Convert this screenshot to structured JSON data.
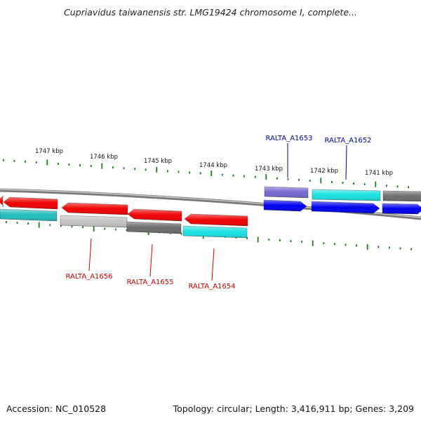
{
  "title": "Cupriavidus taiwanensis str. LMG19424 chromosome I, complete...",
  "footer": {
    "accession": "Accession: NC_010528",
    "topology": "Topology: circular; Length: 3,416,911 bp; Genes: 3,209"
  },
  "colors": {
    "tick": "#1f7a1f",
    "tick_label": "#111111",
    "backbone": "#7a7a7a",
    "label_red": "#cc0000",
    "label_blue": "#0000aa"
  },
  "ticks": [
    "1747 kbp",
    "1746 kbp",
    "1745 kbp",
    "1744 kbp",
    "1743 kbp",
    "1742 kbp",
    "1741 kbp"
  ],
  "gene_labels": [
    {
      "name": "RALTA_A1653",
      "color": "blue"
    },
    {
      "name": "RALTA_A1652",
      "color": "blue"
    },
    {
      "name": "RALTA_A1656",
      "color": "red"
    },
    {
      "name": "RALTA_A1655",
      "color": "red"
    },
    {
      "name": "RALTA_A1654",
      "color": "red"
    }
  ],
  "features": [
    {
      "name": "red-left-stub",
      "color": "#ee0000",
      "strand": "minus"
    },
    {
      "name": "red-1",
      "color": "#ee0000",
      "strand": "minus"
    },
    {
      "name": "red-2",
      "color": "#ee0000",
      "strand": "minus"
    },
    {
      "name": "red-3",
      "color": "#ee0000",
      "strand": "minus"
    },
    {
      "name": "red-4",
      "color": "#ee0000",
      "strand": "minus"
    },
    {
      "name": "teal-left",
      "color": "#22bbbb",
      "strand": "minus"
    },
    {
      "name": "lightgray",
      "color": "#c4c4c4",
      "strand": "minus"
    },
    {
      "name": "darkgray-mid",
      "color": "#6c6c6c",
      "strand": "minus"
    },
    {
      "name": "cyan-mid",
      "color": "#19e0e0",
      "strand": "minus"
    },
    {
      "name": "purple",
      "color": "#7468d0",
      "strand": "plus"
    },
    {
      "name": "cyan-right",
      "color": "#19e0e0",
      "strand": "plus"
    },
    {
      "name": "darkgray-right",
      "color": "#6c6c6c",
      "strand": "plus"
    },
    {
      "name": "blue-1",
      "color": "#0000ee",
      "strand": "plus"
    },
    {
      "name": "blue-2",
      "color": "#0000ee",
      "strand": "plus"
    },
    {
      "name": "blue-3",
      "color": "#0000ee",
      "strand": "plus"
    }
  ]
}
